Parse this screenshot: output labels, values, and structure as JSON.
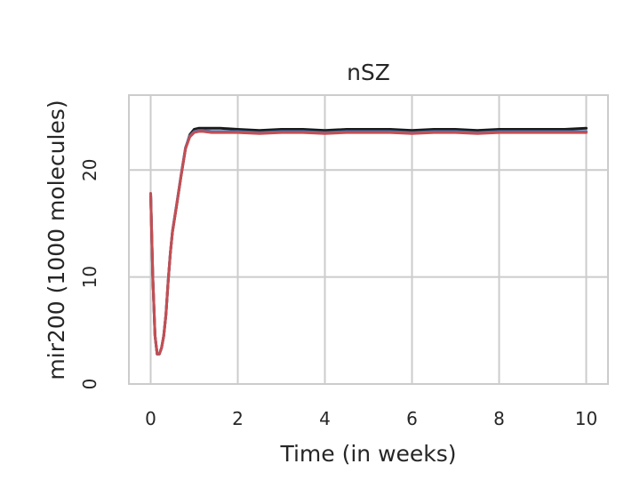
{
  "chart_data": {
    "type": "line",
    "title": "nSZ",
    "xlabel": "Time (in weeks)",
    "ylabel": "mir200 (1000 molecules)",
    "xlim": [
      -0.5,
      10.5
    ],
    "ylim": [
      0,
      27
    ],
    "x_ticks": [
      0,
      2,
      4,
      6,
      8,
      10
    ],
    "x_tick_labels": [
      "0",
      "2",
      "4",
      "6",
      "8",
      "10"
    ],
    "y_ticks": [
      0,
      10,
      20
    ],
    "y_tick_labels": [
      "0",
      "10",
      "20"
    ],
    "grid": true,
    "legend": "none",
    "series": [
      {
        "color": "#1a1a1a",
        "x": [
          0,
          0.05,
          0.1,
          0.15,
          0.2,
          0.25,
          0.3,
          0.35,
          0.4,
          0.45,
          0.5,
          0.6,
          0.7,
          0.8,
          0.9,
          1.0,
          1.1,
          1.2,
          1.4,
          1.6,
          2.0,
          2.5,
          3.0,
          3.5,
          4.0,
          4.5,
          5.0,
          5.5,
          6.0,
          6.5,
          7.0,
          7.5,
          8.0,
          8.5,
          9.0,
          9.5,
          10.0
        ],
        "y": [
          17.8,
          10.0,
          4.5,
          2.8,
          2.8,
          3.4,
          4.5,
          6.5,
          9.5,
          12.2,
          14.2,
          16.8,
          19.5,
          22.0,
          23.3,
          23.8,
          23.9,
          23.9,
          23.9,
          23.9,
          23.8,
          23.7,
          23.8,
          23.8,
          23.7,
          23.8,
          23.8,
          23.8,
          23.7,
          23.8,
          23.8,
          23.7,
          23.8,
          23.8,
          23.8,
          23.8,
          23.9
        ]
      },
      {
        "color": "#4c72b0",
        "x": [
          0,
          0.05,
          0.1,
          0.15,
          0.2,
          0.25,
          0.3,
          0.35,
          0.4,
          0.45,
          0.5,
          0.6,
          0.7,
          0.8,
          0.9,
          1.0,
          1.1,
          1.2,
          1.4,
          1.6,
          2.0,
          2.5,
          3.0,
          3.5,
          4.0,
          4.5,
          5.0,
          5.5,
          6.0,
          6.5,
          7.0,
          7.5,
          8.0,
          8.5,
          9.0,
          9.5,
          10.0
        ],
        "y": [
          17.8,
          10.0,
          4.5,
          2.8,
          2.8,
          3.4,
          4.5,
          6.5,
          9.5,
          12.2,
          14.3,
          16.9,
          19.6,
          22.1,
          23.2,
          23.6,
          23.7,
          23.7,
          23.6,
          23.6,
          23.6,
          23.5,
          23.6,
          23.6,
          23.5,
          23.6,
          23.6,
          23.6,
          23.5,
          23.6,
          23.6,
          23.5,
          23.6,
          23.6,
          23.6,
          23.6,
          23.6
        ]
      },
      {
        "color": "#c44e52",
        "x": [
          0,
          0.05,
          0.1,
          0.15,
          0.2,
          0.25,
          0.3,
          0.35,
          0.4,
          0.45,
          0.5,
          0.6,
          0.7,
          0.8,
          0.9,
          1.0,
          1.1,
          1.2,
          1.4,
          1.6,
          2.0,
          2.5,
          3.0,
          3.5,
          4.0,
          4.5,
          5.0,
          5.5,
          6.0,
          6.5,
          7.0,
          7.5,
          8.0,
          8.5,
          9.0,
          9.5,
          10.0
        ],
        "y": [
          17.8,
          10.0,
          4.5,
          2.8,
          2.8,
          3.4,
          4.5,
          6.5,
          9.5,
          12.2,
          14.2,
          16.8,
          19.5,
          22.0,
          23.1,
          23.5,
          23.6,
          23.6,
          23.5,
          23.5,
          23.5,
          23.4,
          23.5,
          23.5,
          23.4,
          23.5,
          23.5,
          23.5,
          23.4,
          23.5,
          23.5,
          23.4,
          23.5,
          23.5,
          23.5,
          23.5,
          23.5
        ]
      }
    ]
  }
}
